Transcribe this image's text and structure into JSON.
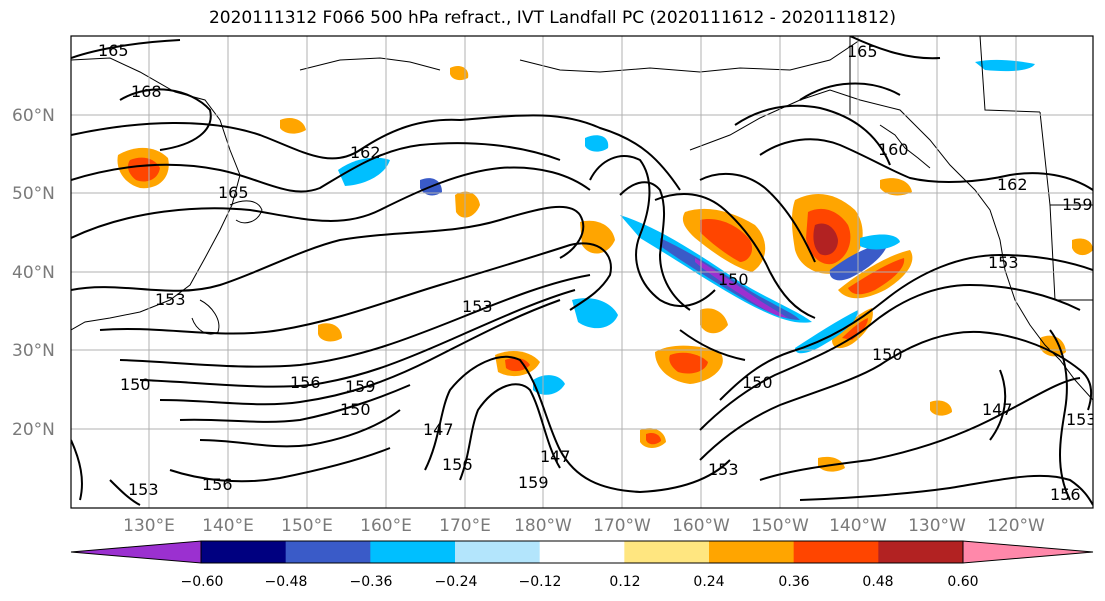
{
  "title": "2020111312 F066 500 hPa refract., IVT Landfall PC (2020111612 - 2020111812)",
  "latitude_labels": [
    "60°N",
    "50°N",
    "40°N",
    "30°N",
    "20°N"
  ],
  "longitude_labels": [
    "130°E",
    "140°E",
    "150°E",
    "160°E",
    "170°E",
    "180°W",
    "170°W",
    "160°W",
    "150°W",
    "140°W",
    "130°W",
    "120°W"
  ],
  "colorbar": {
    "ticks": [
      "−0.60",
      "−0.48",
      "−0.36",
      "−0.24",
      "−0.12",
      "0.12",
      "0.24",
      "0.36",
      "0.48",
      "0.60"
    ],
    "colors": [
      "#9b30d0",
      "#000080",
      "#3a5bc8",
      "#00bfff",
      "#b3e5fc",
      "#ffffff",
      "#ffe680",
      "#ffa500",
      "#ff4500",
      "#b22222",
      "#ff88aa"
    ]
  },
  "contour_labels": [
    "165",
    "168",
    "162",
    "165",
    "153",
    "150",
    "156",
    "159",
    "153",
    "150",
    "147",
    "156",
    "153",
    "147",
    "150",
    "150",
    "153",
    "147",
    "159",
    "162",
    "165",
    "160",
    "153",
    "150",
    "159",
    "156",
    "153",
    "156"
  ],
  "colors": {
    "contour": "#000000",
    "grid": "#b0b0b0",
    "axis_label": "#7a7a7a"
  }
}
